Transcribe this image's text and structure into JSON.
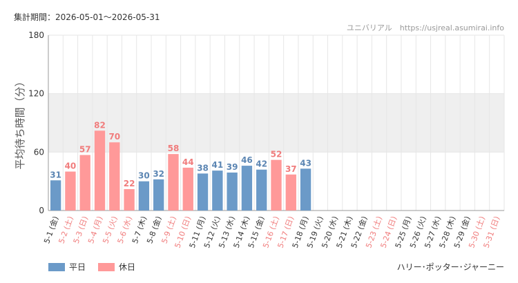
{
  "header": {
    "period": "集計期間：2026-05-01〜2026-05-31",
    "source": "ユニバリアル　https://usjreal.asumirai.info"
  },
  "footer": {
    "attraction": "ハリー･ポッター･ジャーニー"
  },
  "colors": {
    "weekday": "#6b9ac8",
    "holiday": "#ff9999",
    "weekday_label": "#5c86b3",
    "holiday_label": "#f07c7c",
    "band": "#efefef",
    "grid": "#e6e6e6"
  },
  "chart_data": {
    "type": "bar",
    "ylabel": "平均待ち時間（分）",
    "ylim": [
      0,
      180
    ],
    "yticks": [
      0,
      60,
      120,
      180
    ],
    "shaded_band": [
      60,
      120
    ],
    "legend": {
      "position": "bottom-left",
      "entries": [
        "平日",
        "休日"
      ]
    },
    "categories": [
      "5-1 (金)",
      "5-2 (土)",
      "5-3 (日)",
      "5-4 (月)",
      "5-5 (火)",
      "5-6 (水)",
      "5-7 (木)",
      "5-8 (金)",
      "5-9 (土)",
      "5-10 (日)",
      "5-11 (月)",
      "5-12 (火)",
      "5-13 (水)",
      "5-14 (木)",
      "5-15 (金)",
      "5-16 (土)",
      "5-17 (日)",
      "5-18 (月)",
      "5-19 (火)",
      "5-20 (水)",
      "5-21 (木)",
      "5-22 (金)",
      "5-23 (土)",
      "5-24 (日)",
      "5-25 (月)",
      "5-26 (火)",
      "5-27 (水)",
      "5-28 (木)",
      "5-29 (金)",
      "5-30 (土)",
      "5-31 (日)"
    ],
    "day_type": [
      "weekday",
      "holiday",
      "holiday",
      "holiday",
      "holiday",
      "holiday",
      "weekday",
      "weekday",
      "holiday",
      "holiday",
      "weekday",
      "weekday",
      "weekday",
      "weekday",
      "weekday",
      "holiday",
      "holiday",
      "weekday",
      "weekday",
      "weekday",
      "weekday",
      "weekday",
      "holiday",
      "holiday",
      "weekday",
      "weekday",
      "weekday",
      "weekday",
      "weekday",
      "holiday",
      "holiday"
    ],
    "values": [
      31,
      40,
      57,
      82,
      70,
      22,
      30,
      32,
      58,
      44,
      38,
      41,
      39,
      46,
      42,
      52,
      37,
      43,
      null,
      null,
      null,
      null,
      null,
      null,
      null,
      null,
      null,
      null,
      null,
      null,
      null
    ]
  }
}
